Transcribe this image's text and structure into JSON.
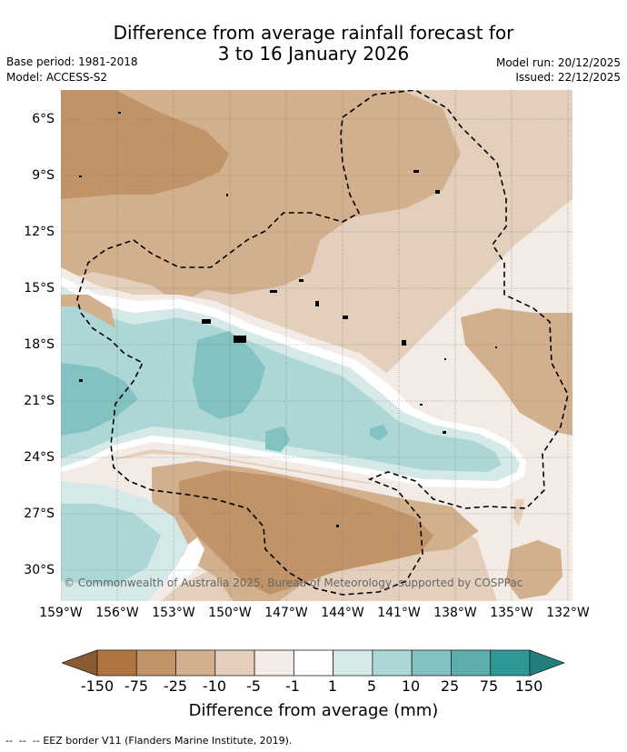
{
  "header": {
    "title_line1": "Difference from average rainfall forecast for",
    "title_line2": "3 to 16 January 2026",
    "base_period": "Base period: 1981-2018",
    "model": "Model: ACCESS-S2",
    "model_run": "Model run: 20/12/2025",
    "issued": "Issued: 22/12/2025"
  },
  "map": {
    "lat_labels": [
      "6°S",
      "9°S",
      "12°S",
      "15°S",
      "18°S",
      "21°S",
      "24°S",
      "27°S",
      "30°S"
    ],
    "lon_labels": [
      "159°W",
      "156°W",
      "153°W",
      "150°W",
      "147°W",
      "144°W",
      "141°W",
      "138°W",
      "135°W",
      "132°W"
    ],
    "copyright": "© Commonwealth of Australia 2025, Bureau of Meteorology, supported by COSPPac",
    "colors": {
      "lt150": "#8a5a32",
      "m75_150": "#b07440",
      "m25_75": "#c09468",
      "m10_25": "#d2b08e",
      "m5_10": "#e4cfbd",
      "m1_5": "#f3ebe5",
      "neutral": "#ffffff",
      "p1_5": "#d4e9e8",
      "p5_10": "#acd7d6",
      "p10_25": "#82c2c1",
      "p25_75": "#5caeac",
      "p75_150": "#2e9896",
      "gt150": "#227f7c"
    }
  },
  "legend": {
    "labels": [
      "-150",
      "-75",
      "-25",
      "-10",
      "-5",
      "-1",
      "1",
      "5",
      "10",
      "25",
      "75",
      "150"
    ],
    "title": "Difference from average (mm)",
    "colors": [
      "#b07440",
      "#c09468",
      "#d2b08e",
      "#e4cfbd",
      "#f3ebe5",
      "#ffffff",
      "#d4e9e8",
      "#acd7d6",
      "#82c2c1",
      "#5caeac",
      "#2e9896"
    ],
    "arrow_low_color": "#8a5a32",
    "arrow_high_color": "#227f7c"
  },
  "footer": {
    "eez_note": "EEZ border V11 (Flanders Marine Institute, 2019)."
  }
}
